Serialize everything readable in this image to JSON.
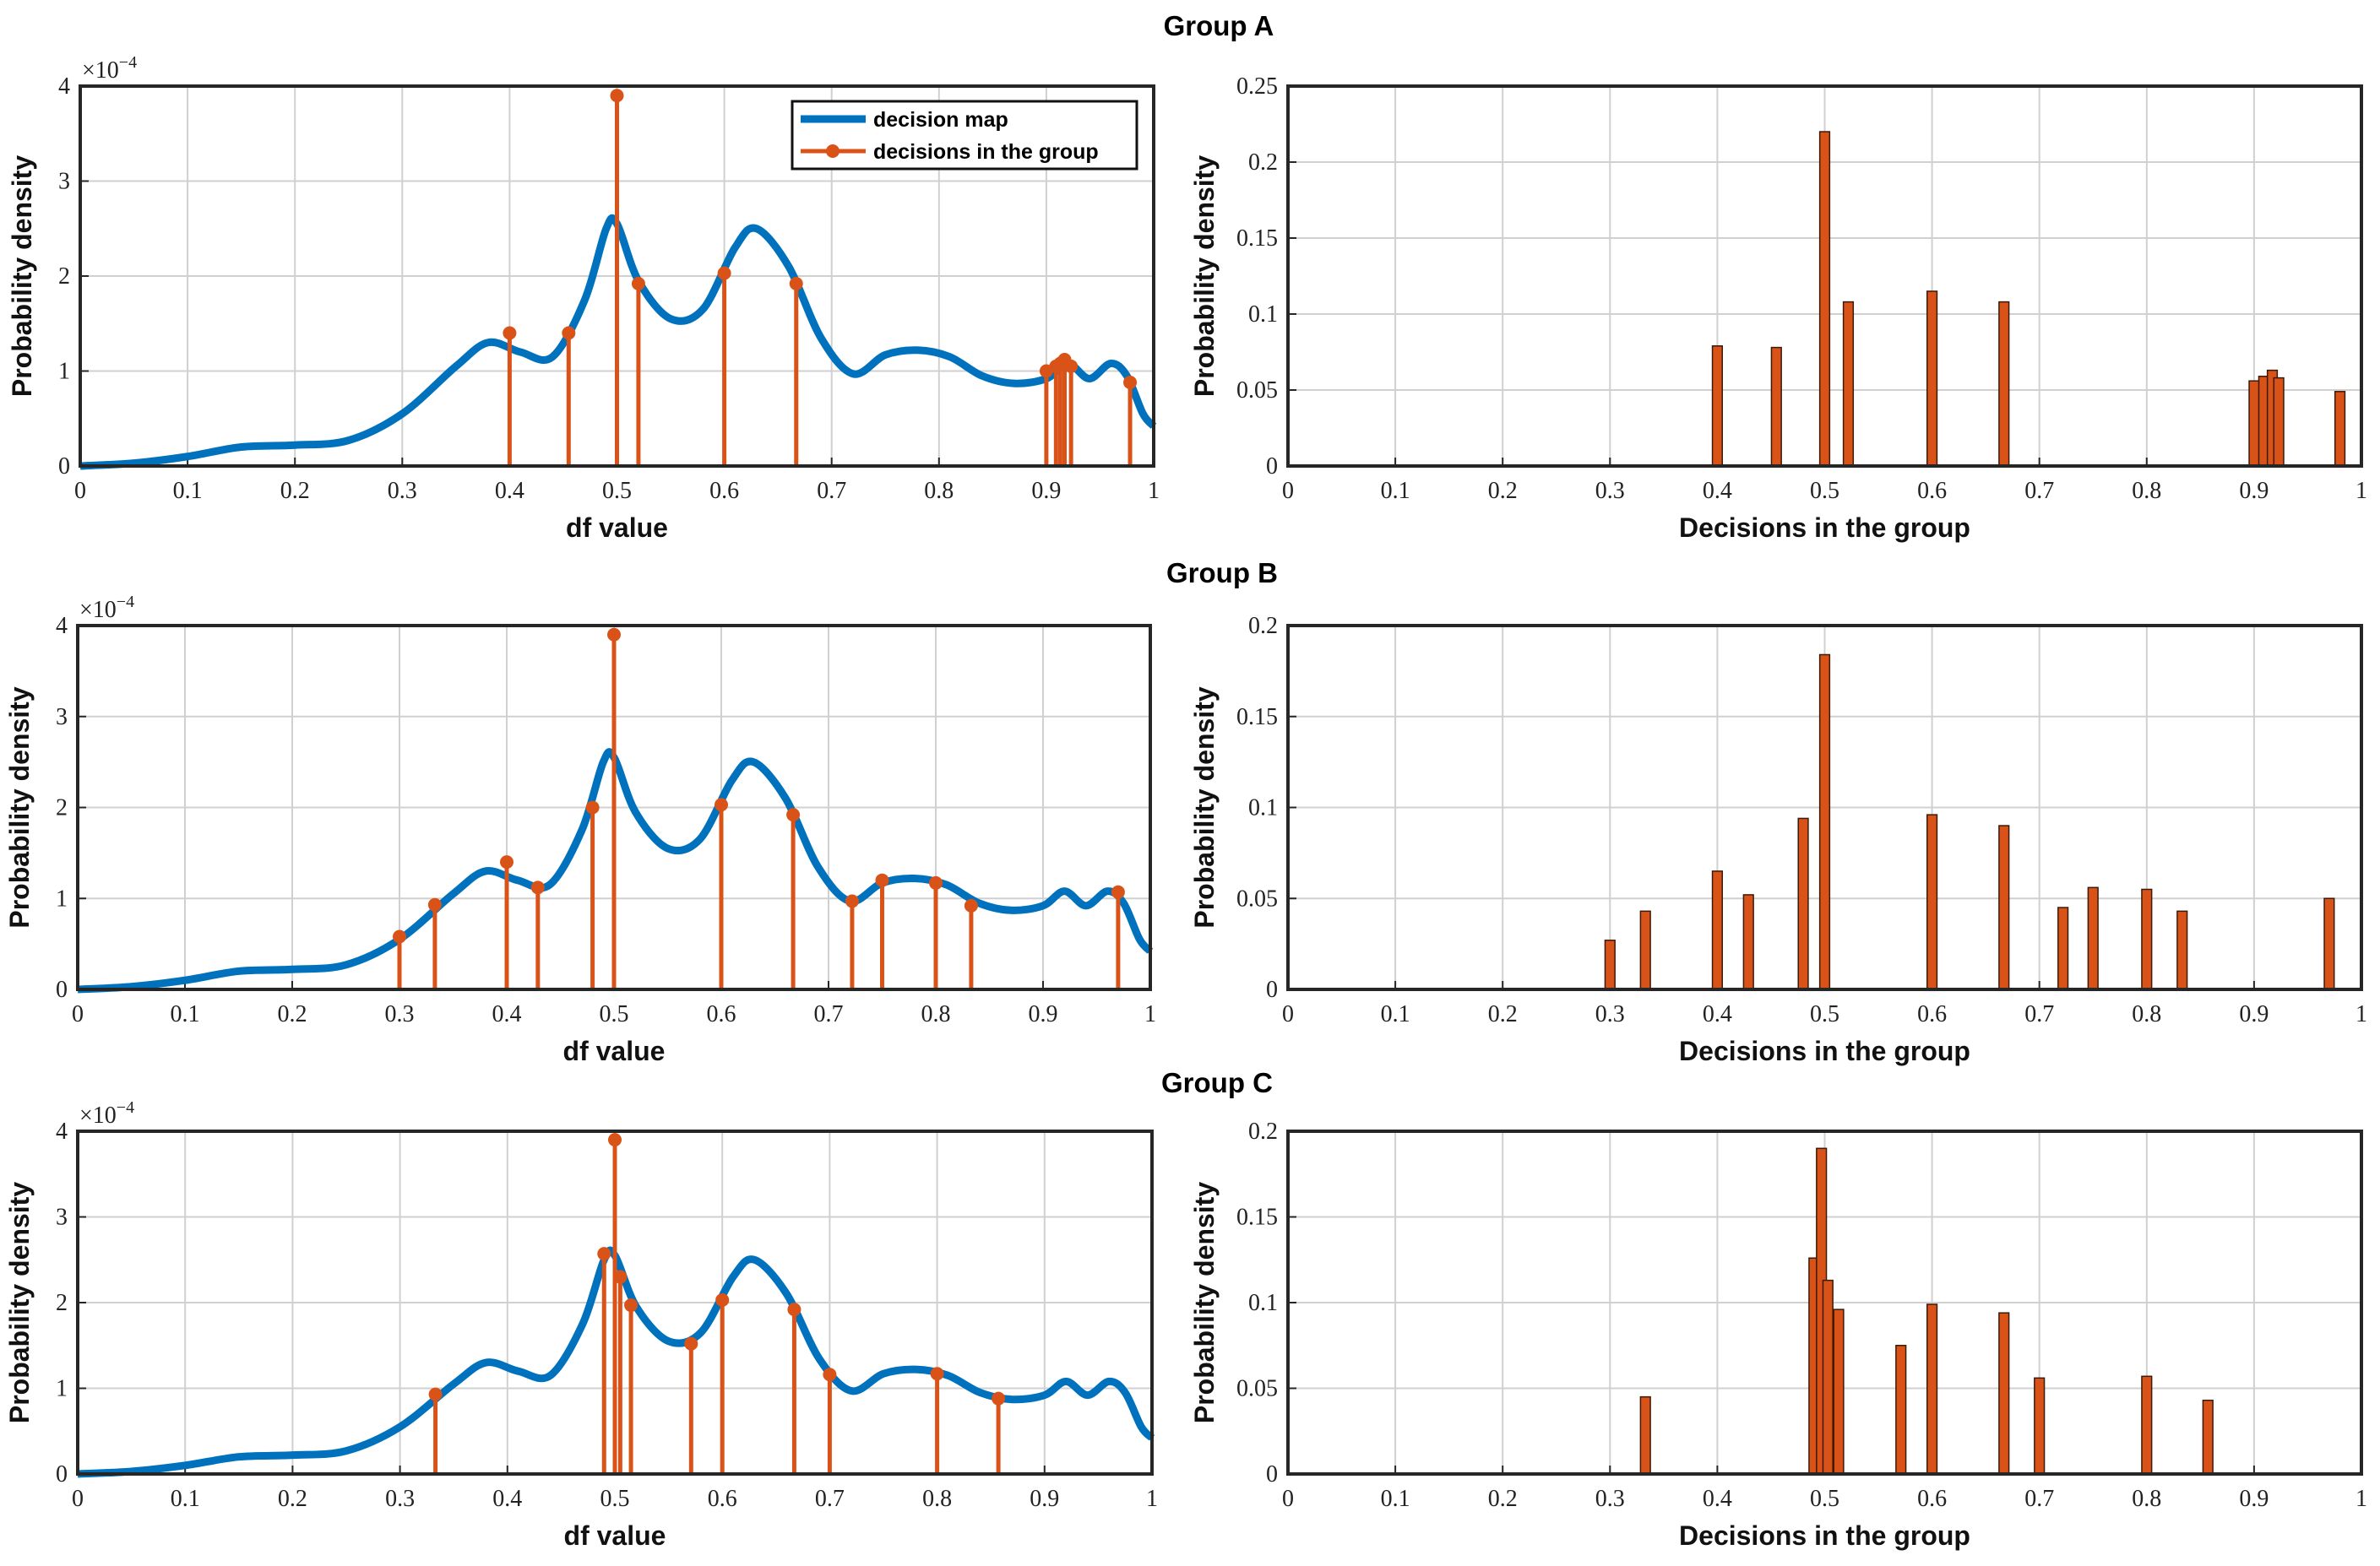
{
  "colors": {
    "density": "#0072BD",
    "decisions": "#D95319",
    "bar_edge": "#3a1a08",
    "grid": "#d0d0d0"
  },
  "legend": {
    "density_label": "decision map",
    "decisions_label": "decisions in the group"
  },
  "chart_data": [
    {
      "group": "A",
      "group_title": "Group A",
      "type": "line+stem",
      "xlabel": "df value",
      "ylabel": "Probability density",
      "exponent_label": "×10",
      "exponent_power": "−4",
      "xlim": [
        0,
        1
      ],
      "ylim": [
        0,
        4
      ],
      "xticks": [
        "0",
        "0.1",
        "0.2",
        "0.3",
        "0.4",
        "0.5",
        "0.6",
        "0.7",
        "0.8",
        "0.9",
        "1"
      ],
      "yticks": [
        "0",
        "1",
        "2",
        "3",
        "4"
      ],
      "stems": [
        {
          "x": 0.4,
          "y": 1.4
        },
        {
          "x": 0.455,
          "y": 1.4
        },
        {
          "x": 0.5,
          "y": 3.9
        },
        {
          "x": 0.52,
          "y": 1.92
        },
        {
          "x": 0.6,
          "y": 2.03
        },
        {
          "x": 0.667,
          "y": 1.92
        },
        {
          "x": 0.9,
          "y": 1.0
        },
        {
          "x": 0.909,
          "y": 1.05
        },
        {
          "x": 0.913,
          "y": 1.08
        },
        {
          "x": 0.917,
          "y": 1.12
        },
        {
          "x": 0.923,
          "y": 1.05
        },
        {
          "x": 0.978,
          "y": 0.88
        }
      ]
    },
    {
      "group": "A",
      "type": "bar",
      "xlabel": "Decisions in the group",
      "ylabel": "Probability density",
      "xlim": [
        0,
        1
      ],
      "ylim": [
        0,
        0.25
      ],
      "xticks": [
        "0",
        "0.1",
        "0.2",
        "0.3",
        "0.4",
        "0.5",
        "0.6",
        "0.7",
        "0.8",
        "0.9",
        "1"
      ],
      "yticks": [
        "0",
        "0.05",
        "0.1",
        "0.15",
        "0.2",
        "0.25"
      ],
      "bars": [
        {
          "x": 0.4,
          "y": 0.079
        },
        {
          "x": 0.455,
          "y": 0.078
        },
        {
          "x": 0.5,
          "y": 0.22
        },
        {
          "x": 0.522,
          "y": 0.108
        },
        {
          "x": 0.6,
          "y": 0.115
        },
        {
          "x": 0.667,
          "y": 0.108
        },
        {
          "x": 0.9,
          "y": 0.056
        },
        {
          "x": 0.909,
          "y": 0.059
        },
        {
          "x": 0.917,
          "y": 0.063
        },
        {
          "x": 0.923,
          "y": 0.058
        },
        {
          "x": 0.98,
          "y": 0.049
        }
      ]
    },
    {
      "group": "B",
      "group_title": "Group B",
      "type": "line+stem",
      "xlabel": "df value",
      "ylabel": "Probability density",
      "exponent_label": "×10",
      "exponent_power": "−4",
      "xlim": [
        0,
        1
      ],
      "ylim": [
        0,
        4
      ],
      "xticks": [
        "0",
        "0.1",
        "0.2",
        "0.3",
        "0.4",
        "0.5",
        "0.6",
        "0.7",
        "0.8",
        "0.9",
        "1"
      ],
      "yticks": [
        "0",
        "1",
        "2",
        "3",
        "4"
      ],
      "stems": [
        {
          "x": 0.3,
          "y": 0.58
        },
        {
          "x": 0.333,
          "y": 0.93
        },
        {
          "x": 0.4,
          "y": 1.4
        },
        {
          "x": 0.429,
          "y": 1.12
        },
        {
          "x": 0.48,
          "y": 2.0
        },
        {
          "x": 0.5,
          "y": 3.9
        },
        {
          "x": 0.6,
          "y": 2.03
        },
        {
          "x": 0.667,
          "y": 1.92
        },
        {
          "x": 0.722,
          "y": 0.97
        },
        {
          "x": 0.75,
          "y": 1.2
        },
        {
          "x": 0.8,
          "y": 1.17
        },
        {
          "x": 0.833,
          "y": 0.92
        },
        {
          "x": 0.97,
          "y": 1.07
        }
      ]
    },
    {
      "group": "B",
      "type": "bar",
      "xlabel": "Decisions in the group",
      "ylabel": "Probability density",
      "xlim": [
        0,
        1
      ],
      "ylim": [
        0,
        0.2
      ],
      "xticks": [
        "0",
        "0.1",
        "0.2",
        "0.3",
        "0.4",
        "0.5",
        "0.6",
        "0.7",
        "0.8",
        "0.9",
        "1"
      ],
      "yticks": [
        "0",
        "0.05",
        "0.1",
        "0.15",
        "0.2"
      ],
      "bars": [
        {
          "x": 0.3,
          "y": 0.027
        },
        {
          "x": 0.333,
          "y": 0.043
        },
        {
          "x": 0.4,
          "y": 0.065
        },
        {
          "x": 0.429,
          "y": 0.052
        },
        {
          "x": 0.48,
          "y": 0.094
        },
        {
          "x": 0.5,
          "y": 0.184
        },
        {
          "x": 0.6,
          "y": 0.096
        },
        {
          "x": 0.667,
          "y": 0.09
        },
        {
          "x": 0.722,
          "y": 0.045
        },
        {
          "x": 0.75,
          "y": 0.056
        },
        {
          "x": 0.8,
          "y": 0.055
        },
        {
          "x": 0.833,
          "y": 0.043
        },
        {
          "x": 0.97,
          "y": 0.05
        }
      ]
    },
    {
      "group": "C",
      "group_title": "Group C",
      "type": "line+stem",
      "xlabel": "df value",
      "ylabel": "Probability density",
      "exponent_label": "×10",
      "exponent_power": "−4",
      "xlim": [
        0,
        1
      ],
      "ylim": [
        0,
        4
      ],
      "xticks": [
        "0",
        "0.1",
        "0.2",
        "0.3",
        "0.4",
        "0.5",
        "0.6",
        "0.7",
        "0.8",
        "0.9",
        "1"
      ],
      "yticks": [
        "0",
        "1",
        "2",
        "3",
        "4"
      ],
      "stems": [
        {
          "x": 0.333,
          "y": 0.93
        },
        {
          "x": 0.49,
          "y": 2.57
        },
        {
          "x": 0.5,
          "y": 3.9
        },
        {
          "x": 0.505,
          "y": 2.3
        },
        {
          "x": 0.515,
          "y": 1.97
        },
        {
          "x": 0.571,
          "y": 1.52
        },
        {
          "x": 0.6,
          "y": 2.03
        },
        {
          "x": 0.667,
          "y": 1.92
        },
        {
          "x": 0.7,
          "y": 1.16
        },
        {
          "x": 0.8,
          "y": 1.17
        },
        {
          "x": 0.857,
          "y": 0.88
        }
      ]
    },
    {
      "group": "C",
      "type": "bar",
      "xlabel": "Decisions in the group",
      "ylabel": "Probability density",
      "xlim": [
        0,
        1
      ],
      "ylim": [
        0,
        0.2
      ],
      "xticks": [
        "0",
        "0.1",
        "0.2",
        "0.3",
        "0.4",
        "0.5",
        "0.6",
        "0.7",
        "0.8",
        "0.9",
        "1"
      ],
      "yticks": [
        "0",
        "0.05",
        "0.1",
        "0.15",
        "0.2"
      ],
      "bars": [
        {
          "x": 0.333,
          "y": 0.045
        },
        {
          "x": 0.49,
          "y": 0.126
        },
        {
          "x": 0.497,
          "y": 0.19
        },
        {
          "x": 0.503,
          "y": 0.113
        },
        {
          "x": 0.513,
          "y": 0.096
        },
        {
          "x": 0.571,
          "y": 0.075
        },
        {
          "x": 0.6,
          "y": 0.099
        },
        {
          "x": 0.667,
          "y": 0.094
        },
        {
          "x": 0.7,
          "y": 0.056
        },
        {
          "x": 0.8,
          "y": 0.057
        },
        {
          "x": 0.857,
          "y": 0.043
        }
      ]
    }
  ]
}
